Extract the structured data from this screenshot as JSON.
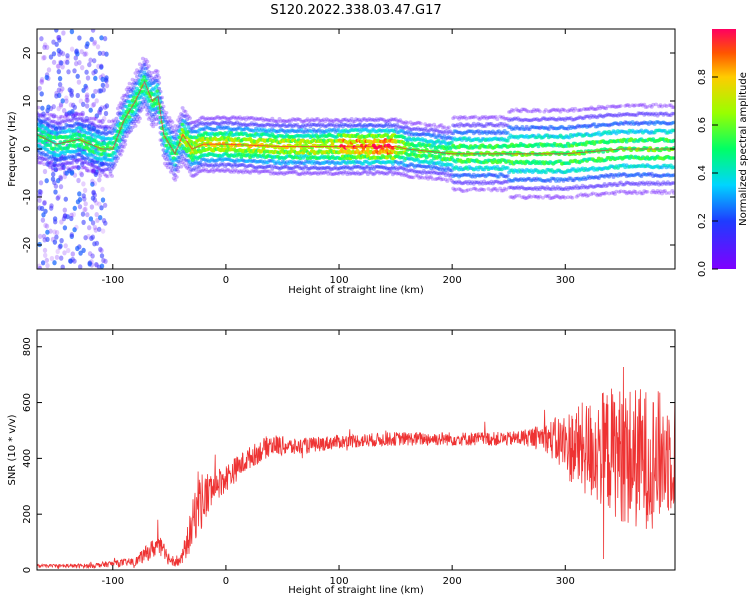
{
  "figure": {
    "title": "S120.2022.338.03.47.G17"
  },
  "chart_data": [
    {
      "type": "heatmap",
      "title": "S120.2022.338.03.47.G17",
      "xlabel": "Height of straight line (km)",
      "ylabel": "Frequency (Hz)",
      "xlim": [
        -167,
        397
      ],
      "ylim": [
        -25,
        25
      ],
      "xticks": [
        -100,
        0,
        100,
        200,
        300
      ],
      "yticks": [
        -20,
        -10,
        0,
        10,
        20
      ],
      "colorbar": {
        "label": "Normalized spectral amplitude",
        "range": [
          0,
          1
        ],
        "ticks": [
          "0.0",
          "0.2",
          "0.4",
          "0.6",
          "0.8"
        ],
        "colormap": "rainbow (violet to red)"
      },
      "ridge": {
        "description": "dominant frequency ridge",
        "x": [
          -167,
          -150,
          -130,
          -110,
          -100,
          -90,
          -80,
          -72,
          -65,
          -60,
          -55,
          -45,
          -38,
          -30,
          -20,
          0,
          50,
          100,
          150,
          160,
          200,
          250,
          300,
          350,
          397
        ],
        "y": [
          3,
          1,
          2,
          0,
          0,
          6,
          10,
          14,
          10,
          11,
          3,
          -1,
          3,
          0,
          1,
          1,
          0.5,
          0.5,
          0.5,
          0,
          -1,
          -1,
          -1,
          0,
          0
        ]
      },
      "grid": false
    },
    {
      "type": "line",
      "xlabel": "Height of straight line (km)",
      "ylabel": "SNR (10 * v/v)",
      "xlim": [
        -167,
        397
      ],
      "ylim": [
        0,
        860
      ],
      "xticks": [
        -100,
        0,
        100,
        200,
        300
      ],
      "yticks": [
        0,
        200,
        400,
        600,
        800
      ],
      "series": [
        {
          "color": "#ee3333",
          "x": [
            -167,
            -120,
            -80,
            -70,
            -60,
            -50,
            -40,
            -30,
            -25,
            -20,
            -10,
            0,
            20,
            40,
            60,
            100,
            150,
            200,
            250,
            280,
            300,
            320,
            340,
            360,
            380,
            397
          ],
          "y": [
            15,
            15,
            30,
            60,
            90,
            40,
            30,
            150,
            250,
            250,
            300,
            330,
            400,
            450,
            440,
            460,
            470,
            470,
            470,
            480,
            450,
            430,
            430,
            400,
            400,
            420
          ],
          "noise_amplitude": [
            5,
            8,
            15,
            30,
            40,
            25,
            20,
            80,
            120,
            100,
            60,
            50,
            40,
            40,
            30,
            25,
            25,
            25,
            25,
            40,
            120,
            180,
            230,
            260,
            250,
            200
          ]
        }
      ],
      "grid": false
    }
  ]
}
